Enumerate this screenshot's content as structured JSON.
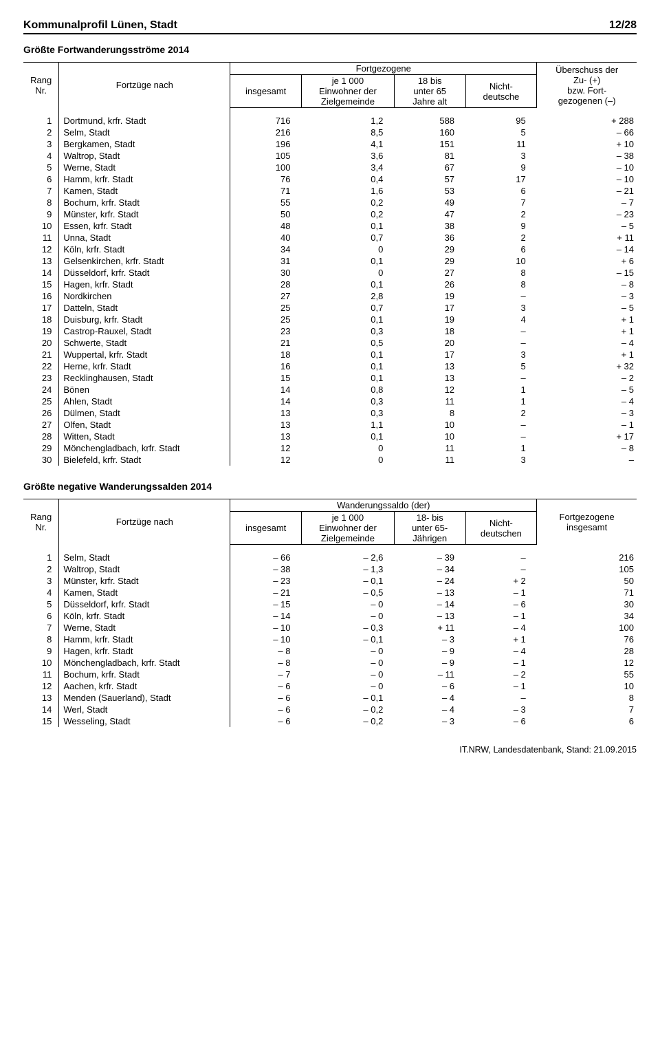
{
  "header": {
    "title": "Kommunalprofil Lünen, Stadt",
    "page": "12/28"
  },
  "section1_title": "Größte Fortwanderungsströme 2014",
  "section2_title": "Größte negative Wanderungssalden 2014",
  "footer": "IT.NRW, Landesdatenbank, Stand: 21.09.2015",
  "t1": {
    "h_rang": "Rang\nNr.",
    "h_nach": "Fortzüge nach",
    "h_fort": "Fortgezogene",
    "h_insg": "insgesamt",
    "h_je": "je 1 000\nEinwohner der\nZielgemeinde",
    "h_18": "18 bis\nunter 65\nJahre alt",
    "h_nicht": "Nicht-\ndeutsche",
    "h_ueb": "Überschuss der\nZu- (+)\nbzw. Fort-\ngezogenen (–)",
    "rows": [
      {
        "r": "1",
        "n": "Dortmund, krfr. Stadt",
        "a": "716",
        "b": "1,2",
        "c": "588",
        "d": "95",
        "e": "+ 288"
      },
      {
        "r": "2",
        "n": "Selm, Stadt",
        "a": "216",
        "b": "8,5",
        "c": "160",
        "d": "5",
        "e": "– 66"
      },
      {
        "r": "3",
        "n": "Bergkamen, Stadt",
        "a": "196",
        "b": "4,1",
        "c": "151",
        "d": "11",
        "e": "+ 10"
      },
      {
        "r": "4",
        "n": "Waltrop, Stadt",
        "a": "105",
        "b": "3,6",
        "c": "81",
        "d": "3",
        "e": "– 38"
      },
      {
        "r": "5",
        "n": "Werne, Stadt",
        "a": "100",
        "b": "3,4",
        "c": "67",
        "d": "9",
        "e": "– 10"
      },
      {
        "r": "6",
        "n": "Hamm, krfr. Stadt",
        "a": "76",
        "b": "0,4",
        "c": "57",
        "d": "17",
        "e": "– 10"
      },
      {
        "r": "7",
        "n": "Kamen, Stadt",
        "a": "71",
        "b": "1,6",
        "c": "53",
        "d": "6",
        "e": "– 21"
      },
      {
        "r": "8",
        "n": "Bochum, krfr. Stadt",
        "a": "55",
        "b": "0,2",
        "c": "49",
        "d": "7",
        "e": "– 7"
      },
      {
        "r": "9",
        "n": "Münster, krfr. Stadt",
        "a": "50",
        "b": "0,2",
        "c": "47",
        "d": "2",
        "e": "– 23"
      },
      {
        "r": "10",
        "n": "Essen, krfr. Stadt",
        "a": "48",
        "b": "0,1",
        "c": "38",
        "d": "9",
        "e": "– 5"
      },
      {
        "r": "11",
        "n": "Unna, Stadt",
        "a": "40",
        "b": "0,7",
        "c": "36",
        "d": "2",
        "e": "+ 11"
      },
      {
        "r": "12",
        "n": "Köln, krfr. Stadt",
        "a": "34",
        "b": "0",
        "c": "29",
        "d": "6",
        "e": "– 14"
      },
      {
        "r": "13",
        "n": "Gelsenkirchen, krfr. Stadt",
        "a": "31",
        "b": "0,1",
        "c": "29",
        "d": "10",
        "e": "+ 6"
      },
      {
        "r": "14",
        "n": "Düsseldorf, krfr. Stadt",
        "a": "30",
        "b": "0",
        "c": "27",
        "d": "8",
        "e": "– 15"
      },
      {
        "r": "15",
        "n": "Hagen, krfr. Stadt",
        "a": "28",
        "b": "0,1",
        "c": "26",
        "d": "8",
        "e": "– 8"
      },
      {
        "r": "16",
        "n": "Nordkirchen",
        "a": "27",
        "b": "2,8",
        "c": "19",
        "d": "–",
        "e": "– 3"
      },
      {
        "r": "17",
        "n": "Datteln, Stadt",
        "a": "25",
        "b": "0,7",
        "c": "17",
        "d": "3",
        "e": "– 5"
      },
      {
        "r": "18",
        "n": "Duisburg, krfr. Stadt",
        "a": "25",
        "b": "0,1",
        "c": "19",
        "d": "4",
        "e": "+ 1"
      },
      {
        "r": "19",
        "n": "Castrop-Rauxel, Stadt",
        "a": "23",
        "b": "0,3",
        "c": "18",
        "d": "–",
        "e": "+ 1"
      },
      {
        "r": "20",
        "n": "Schwerte, Stadt",
        "a": "21",
        "b": "0,5",
        "c": "20",
        "d": "–",
        "e": "– 4"
      },
      {
        "r": "21",
        "n": "Wuppertal, krfr. Stadt",
        "a": "18",
        "b": "0,1",
        "c": "17",
        "d": "3",
        "e": "+ 1"
      },
      {
        "r": "22",
        "n": "Herne, krfr. Stadt",
        "a": "16",
        "b": "0,1",
        "c": "13",
        "d": "5",
        "e": "+ 32"
      },
      {
        "r": "23",
        "n": "Recklinghausen, Stadt",
        "a": "15",
        "b": "0,1",
        "c": "13",
        "d": "–",
        "e": "– 2"
      },
      {
        "r": "24",
        "n": "Bönen",
        "a": "14",
        "b": "0,8",
        "c": "12",
        "d": "1",
        "e": "– 5"
      },
      {
        "r": "25",
        "n": "Ahlen, Stadt",
        "a": "14",
        "b": "0,3",
        "c": "11",
        "d": "1",
        "e": "– 4"
      },
      {
        "r": "26",
        "n": "Dülmen, Stadt",
        "a": "13",
        "b": "0,3",
        "c": "8",
        "d": "2",
        "e": "– 3"
      },
      {
        "r": "27",
        "n": "Olfen, Stadt",
        "a": "13",
        "b": "1,1",
        "c": "10",
        "d": "–",
        "e": "– 1"
      },
      {
        "r": "28",
        "n": "Witten, Stadt",
        "a": "13",
        "b": "0,1",
        "c": "10",
        "d": "–",
        "e": "+ 17"
      },
      {
        "r": "29",
        "n": "Mönchengladbach, krfr. Stadt",
        "a": "12",
        "b": "0",
        "c": "11",
        "d": "1",
        "e": "– 8"
      },
      {
        "r": "30",
        "n": "Bielefeld, krfr. Stadt",
        "a": "12",
        "b": "0",
        "c": "11",
        "d": "3",
        "e": "–"
      }
    ]
  },
  "t2": {
    "h_rang": "Rang\nNr.",
    "h_nach": "Fortzüge nach",
    "h_saldo": "Wanderungssaldo (der)",
    "h_insg": "insgesamt",
    "h_je": "je 1 000\nEinwohner der\nZielgemeinde",
    "h_18": "18- bis\nunter 65-\nJährigen",
    "h_nicht": "Nicht-\ndeutschen",
    "h_fort": "Fortgezogene\ninsgesamt",
    "rows": [
      {
        "r": "1",
        "n": "Selm, Stadt",
        "a": "– 66",
        "b": "– 2,6",
        "c": "– 39",
        "d": "–",
        "e": "216"
      },
      {
        "r": "2",
        "n": "Waltrop, Stadt",
        "a": "– 38",
        "b": "– 1,3",
        "c": "– 34",
        "d": "–",
        "e": "105"
      },
      {
        "r": "3",
        "n": "Münster, krfr. Stadt",
        "a": "– 23",
        "b": "– 0,1",
        "c": "– 24",
        "d": "+ 2",
        "e": "50"
      },
      {
        "r": "4",
        "n": "Kamen, Stadt",
        "a": "– 21",
        "b": "– 0,5",
        "c": "– 13",
        "d": "– 1",
        "e": "71"
      },
      {
        "r": "5",
        "n": "Düsseldorf, krfr. Stadt",
        "a": "– 15",
        "b": "– 0",
        "c": "– 14",
        "d": "– 6",
        "e": "30"
      },
      {
        "r": "6",
        "n": "Köln, krfr. Stadt",
        "a": "– 14",
        "b": "– 0",
        "c": "– 13",
        "d": "– 1",
        "e": "34"
      },
      {
        "r": "7",
        "n": "Werne, Stadt",
        "a": "– 10",
        "b": "– 0,3",
        "c": "+ 11",
        "d": "– 4",
        "e": "100"
      },
      {
        "r": "8",
        "n": "Hamm, krfr. Stadt",
        "a": "– 10",
        "b": "– 0,1",
        "c": "– 3",
        "d": "+ 1",
        "e": "76"
      },
      {
        "r": "9",
        "n": "Hagen, krfr. Stadt",
        "a": "– 8",
        "b": "– 0",
        "c": "– 9",
        "d": "– 4",
        "e": "28"
      },
      {
        "r": "10",
        "n": "Mönchengladbach, krfr. Stadt",
        "a": "– 8",
        "b": "– 0",
        "c": "– 9",
        "d": "– 1",
        "e": "12"
      },
      {
        "r": "11",
        "n": "Bochum, krfr. Stadt",
        "a": "– 7",
        "b": "– 0",
        "c": "– 11",
        "d": "– 2",
        "e": "55"
      },
      {
        "r": "12",
        "n": "Aachen, krfr. Stadt",
        "a": "– 6",
        "b": "– 0",
        "c": "– 6",
        "d": "– 1",
        "e": "10"
      },
      {
        "r": "13",
        "n": "Menden (Sauerland), Stadt",
        "a": "– 6",
        "b": "– 0,1",
        "c": "– 4",
        "d": "–",
        "e": "8"
      },
      {
        "r": "14",
        "n": "Werl, Stadt",
        "a": "– 6",
        "b": "– 0,2",
        "c": "– 4",
        "d": "– 3",
        "e": "7"
      },
      {
        "r": "15",
        "n": "Wesseling, Stadt",
        "a": "– 6",
        "b": "– 0,2",
        "c": "– 3",
        "d": "– 6",
        "e": "6"
      }
    ]
  }
}
